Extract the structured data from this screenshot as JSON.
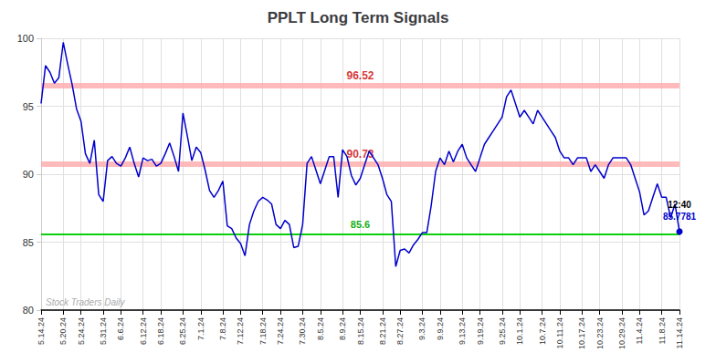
{
  "chart_data": {
    "type": "line",
    "title": "PPLT Long Term Signals",
    "color": "#0000cc",
    "categories": [
      "5.14.24",
      null,
      null,
      null,
      null,
      "5.20.24",
      null,
      null,
      null,
      "5.24.24",
      null,
      null,
      null,
      null,
      "5.31.24",
      null,
      null,
      null,
      "6.6.24",
      null,
      null,
      null,
      null,
      "6.12.24",
      null,
      null,
      null,
      "6.18.24",
      null,
      null,
      null,
      null,
      "6.25.24",
      null,
      null,
      null,
      "7.1.24",
      null,
      null,
      null,
      null,
      "7.8.24",
      null,
      null,
      null,
      "7.12.24",
      null,
      null,
      null,
      null,
      "7.18.24",
      null,
      null,
      null,
      "7.24.24",
      null,
      null,
      null,
      null,
      "7.30.24",
      null,
      null,
      null,
      "8.5.24",
      null,
      null,
      null,
      null,
      "8.9.24",
      null,
      null,
      null,
      "8.15.24",
      null,
      null,
      null,
      null,
      "8.21.24",
      null,
      null,
      null,
      "8.27.24",
      null,
      null,
      null,
      null,
      "9.3.24",
      null,
      null,
      null,
      "9.9.24",
      null,
      null,
      null,
      null,
      "9.13.24",
      null,
      null,
      null,
      "9.19.24",
      null,
      null,
      null,
      null,
      "9.25.24",
      null,
      null,
      null,
      "10.1.24",
      null,
      null,
      null,
      null,
      "10.7.24",
      null,
      null,
      null,
      "10.11.24",
      null,
      null,
      null,
      null,
      "10.17.24",
      null,
      null,
      null,
      "10.23.24",
      null,
      null,
      null,
      null,
      "10.29.24",
      null,
      null,
      null,
      "11.4.24",
      null,
      null,
      null,
      null,
      "11.8.24",
      null,
      null,
      null,
      "11.14.24"
    ],
    "values": [
      95.2,
      98.0,
      97.5,
      96.7,
      97.1,
      99.7,
      98.1,
      96.6,
      94.8,
      93.9,
      91.5,
      90.8,
      92.5,
      88.5,
      88.0,
      91.0,
      91.3,
      90.8,
      90.6,
      91.2,
      92.0,
      90.8,
      89.8,
      91.2,
      91.0,
      91.1,
      90.6,
      90.8,
      91.5,
      92.3,
      91.3,
      90.2,
      94.5,
      92.8,
      91.0,
      92.0,
      91.6,
      90.3,
      88.8,
      88.3,
      88.8,
      89.5,
      86.2,
      86.0,
      85.3,
      84.9,
      84.0,
      86.3,
      87.3,
      88.0,
      88.3,
      88.1,
      87.8,
      86.3,
      86.0,
      86.6,
      86.3,
      84.6,
      84.7,
      86.3,
      90.8,
      91.3,
      90.3,
      89.3,
      90.3,
      91.3,
      91.3,
      88.3,
      91.8,
      91.3,
      89.9,
      89.2,
      89.7,
      90.7,
      91.7,
      91.2,
      90.7,
      89.7,
      88.5,
      88.0,
      83.2,
      84.4,
      84.5,
      84.2,
      84.8,
      85.2,
      85.7,
      85.7,
      87.7,
      90.2,
      91.2,
      90.7,
      91.7,
      90.9,
      91.7,
      92.2,
      91.2,
      90.7,
      90.2,
      91.2,
      92.2,
      92.7,
      93.2,
      93.7,
      94.2,
      95.7,
      96.2,
      95.2,
      94.2,
      94.7,
      94.2,
      93.7,
      94.7,
      94.2,
      93.7,
      93.2,
      92.7,
      91.7,
      91.2,
      91.2,
      90.7,
      91.2,
      91.2,
      91.2,
      90.2,
      90.7,
      90.2,
      89.7,
      90.7,
      91.2,
      91.2,
      91.2,
      91.2,
      90.7,
      89.7,
      88.7,
      87.0,
      87.3,
      88.3,
      89.3,
      88.3,
      88.3,
      86.8,
      87.8,
      85.7781
    ],
    "ylim": [
      80,
      100
    ],
    "yticks": [
      80,
      85,
      90,
      95,
      100
    ],
    "grid": true,
    "reference_lines": [
      {
        "value": 96.52,
        "label": "96.52",
        "color": "#ffaaaa",
        "label_color": "#cc0000"
      },
      {
        "value": 90.73,
        "label": "90.73",
        "color": "#ffaaaa",
        "label_color": "#cc0000"
      },
      {
        "value": 85.6,
        "label": "85.6",
        "color": "#00cc00",
        "label_color": "#00aa00"
      }
    ],
    "end_labels": [
      {
        "text": "12:40",
        "color": "#000000"
      },
      {
        "text": "85.7781",
        "color": "#0000cc"
      }
    ],
    "watermark": {
      "text": "Stock Traders Daily",
      "color": "#aaaaaa"
    }
  }
}
